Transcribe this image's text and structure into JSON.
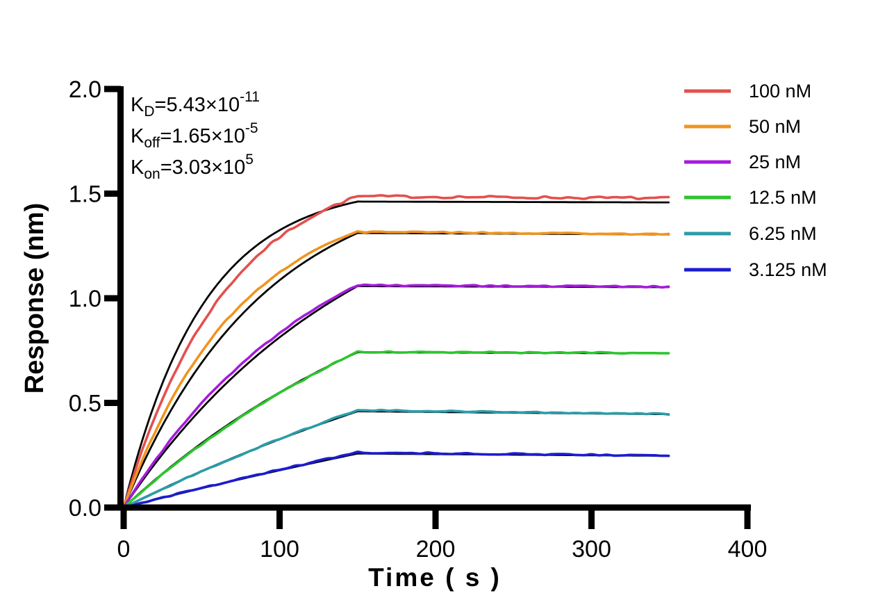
{
  "chart_data": {
    "type": "line",
    "title": "",
    "xlabel": "Time ( s )",
    "ylabel": "Response (nm)",
    "xlim": [
      0,
      400
    ],
    "ylim": [
      0.0,
      2.0
    ],
    "xtick_labels": [
      "0",
      "100",
      "200",
      "300",
      "400"
    ],
    "xtick_values": [
      0,
      100,
      200,
      300,
      400
    ],
    "ytick_labels": [
      "0.0",
      "0.5",
      "1.0",
      "1.5",
      "2.0"
    ],
    "ytick_values": [
      0.0,
      0.5,
      1.0,
      1.5,
      2.0
    ],
    "grid": false,
    "legend_position": "upper-right-outside",
    "association_end_s": 150,
    "time_end_s": 350,
    "fit_color": "#000000",
    "annotations": [
      {
        "base": "K",
        "sub": "D",
        "body": "=5.43×10",
        "exp": "-11"
      },
      {
        "base": "K",
        "sub": "off",
        "body": "=1.65×10",
        "exp": "-5"
      },
      {
        "base": "K",
        "sub": "on",
        "body": "=3.03×10",
        "exp": "5"
      }
    ],
    "series": [
      {
        "label": "100 nM",
        "color": "#E3504E",
        "data": {
          "peak": 1.487,
          "end": 1.478,
          "k_obs": 0.015,
          "noise": 0.006
        },
        "fit": {
          "peak": 1.462,
          "end": 1.458,
          "k_obs": 0.0195
        }
      },
      {
        "label": "50 nM",
        "color": "#F0941F",
        "data": {
          "peak": 1.318,
          "end": 1.306,
          "k_obs": 0.0135,
          "noise": 0.0035
        },
        "fit": {
          "peak": 1.312,
          "end": 1.305,
          "k_obs": 0.0112
        }
      },
      {
        "label": "25 nM",
        "color": "#A51BDB",
        "data": {
          "peak": 1.062,
          "end": 1.055,
          "k_obs": 0.0078,
          "noise": 0.0032
        },
        "fit": {
          "peak": 1.058,
          "end": 1.053,
          "k_obs": 0.0066
        }
      },
      {
        "label": "12.5 nM",
        "color": "#2EC42E",
        "data": {
          "peak": 0.744,
          "end": 0.738,
          "k_obs": 0.0042,
          "noise": 0.003
        },
        "fit": {
          "peak": 0.742,
          "end": 0.737,
          "k_obs": 0.0047
        }
      },
      {
        "label": "6.25 nM",
        "color": "#2B9CA8",
        "data": {
          "peak": 0.465,
          "end": 0.447,
          "k_obs": 0.0023,
          "noise": 0.003
        },
        "fit": {
          "peak": 0.46,
          "end": 0.446,
          "k_obs": 0.0026
        }
      },
      {
        "label": "3.125 nM",
        "color": "#1C1CD0",
        "data": {
          "peak": 0.263,
          "end": 0.248,
          "k_obs": 0.0012,
          "noise": 0.0033
        },
        "fit": {
          "peak": 0.258,
          "end": 0.247,
          "k_obs": 0.0014
        }
      }
    ]
  },
  "background_color": "#FFFFFF"
}
